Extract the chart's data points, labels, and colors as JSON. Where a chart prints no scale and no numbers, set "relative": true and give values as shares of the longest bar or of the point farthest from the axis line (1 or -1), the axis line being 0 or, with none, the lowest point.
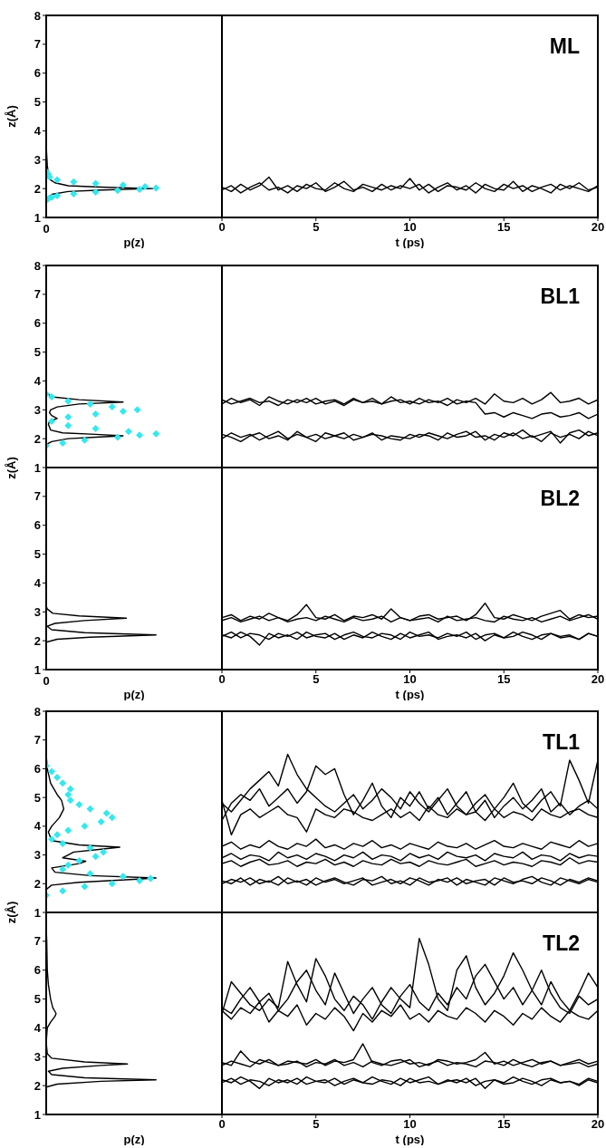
{
  "chart_data": [
    {
      "type": "line",
      "orientation": "horizontal",
      "relative": true,
      "ylabel": "z(Å)",
      "xlabel": "p(z)",
      "ylim": [
        1,
        8
      ],
      "yticks": [
        1,
        2,
        3,
        4,
        5,
        6,
        7,
        8
      ],
      "annotations": [
        {
          "text": "0",
          "x": 0,
          "y": 1
        }
      ],
      "series": [
        {
          "type": "line",
          "color": "#000000",
          "x": [
            1.0,
            1.5,
            1.7,
            1.8,
            1.9,
            1.95,
            2.0,
            2.05,
            2.1,
            2.2,
            2.3,
            2.5,
            2.8,
            3.5,
            8.0
          ],
          "values": [
            0,
            0,
            0.02,
            0.05,
            0.2,
            0.5,
            0.97,
            0.5,
            0.2,
            0.08,
            0.04,
            0.02,
            0.01,
            0,
            0
          ]
        },
        {
          "type": "scatter",
          "marker": "diamond",
          "color": "#33e8ee",
          "x": [
            1.6,
            1.65,
            1.7,
            1.75,
            1.82,
            1.88,
            1.93,
            1.97,
            2.02,
            2.07,
            2.12,
            2.18,
            2.23,
            2.3,
            2.4,
            2.5,
            2.6
          ],
          "values": [
            0,
            0.02,
            0.05,
            0.1,
            0.25,
            0.45,
            0.65,
            0.85,
            1,
            0.9,
            0.7,
            0.45,
            0.25,
            0.1,
            0.03,
            0.02,
            0
          ]
        }
      ]
    },
    {
      "type": "line",
      "xlabel": "t (ps)",
      "annotations": [
        "ML"
      ],
      "tick_labels": "x",
      "xlim": [
        0,
        20
      ],
      "xticks": [
        0,
        5,
        10,
        15,
        20
      ],
      "ylim": [
        1,
        8
      ],
      "yticks": [
        1,
        2,
        3,
        4,
        5,
        6,
        7,
        8
      ],
      "x": [
        0,
        0.5,
        1,
        1.5,
        2,
        2.5,
        3,
        3.5,
        4,
        4.5,
        5,
        5.5,
        6,
        6.5,
        7,
        7.5,
        8,
        8.5,
        9,
        9.5,
        10,
        10.5,
        11,
        11.5,
        12,
        12.5,
        13,
        13.5,
        14,
        14.5,
        15,
        15.5,
        16,
        16.5,
        17,
        17.5,
        18,
        18.5,
        19,
        19.5,
        20
      ],
      "series": [
        {
          "color": "#000000",
          "values": [
            2.05,
            1.9,
            2.15,
            1.95,
            2.1,
            2.4,
            1.95,
            2.1,
            1.9,
            2.15,
            2.0,
            1.95,
            2.2,
            2.0,
            1.9,
            2.15,
            2.05,
            1.95,
            2.1,
            2.0,
            2.35,
            1.95,
            2.15,
            1.9,
            2.1,
            2.05,
            1.95,
            2.2,
            2.0,
            1.9,
            2.15,
            2.0,
            2.1,
            1.9,
            2.05,
            2.15,
            1.95,
            2.1,
            2.0,
            1.9,
            2.1
          ]
        },
        {
          "color": "#000000",
          "values": [
            1.95,
            2.1,
            1.85,
            2.05,
            2.2,
            1.95,
            2.05,
            1.85,
            2.1,
            2.0,
            2.2,
            1.9,
            2.05,
            2.25,
            1.95,
            2.05,
            1.9,
            2.15,
            1.95,
            2.1,
            2.0,
            2.15,
            1.85,
            2.05,
            2.2,
            1.95,
            2.1,
            1.85,
            2.15,
            2.0,
            1.95,
            2.25,
            1.9,
            2.1,
            2.0,
            1.85,
            2.15,
            2.0,
            2.2,
            1.95,
            2.05
          ]
        }
      ]
    },
    {
      "type": "line",
      "orientation": "horizontal",
      "relative": true,
      "ylabel": "z(Å)",
      "tick_labels": "y",
      "ylim": [
        1,
        8
      ],
      "yticks": [
        1,
        2,
        3,
        4,
        5,
        6,
        7,
        8
      ],
      "series": [
        {
          "type": "line",
          "color": "#000000",
          "x": [
            1.0,
            1.8,
            1.9,
            2.0,
            2.05,
            2.1,
            2.15,
            2.2,
            2.3,
            2.5,
            2.6,
            2.7,
            2.8,
            2.9,
            3.0,
            3.1,
            3.2,
            3.27,
            3.35,
            3.45,
            3.6,
            8.0
          ],
          "values": [
            0,
            0,
            0.05,
            0.2,
            0.45,
            0.7,
            0.45,
            0.15,
            0.04,
            0.02,
            0.03,
            0.1,
            0.05,
            0.03,
            0.04,
            0.1,
            0.3,
            0.7,
            0.3,
            0.05,
            0,
            0
          ]
        },
        {
          "type": "scatter",
          "marker": "diamond",
          "color": "#33e8ee",
          "x": [
            1.75,
            1.85,
            1.95,
            2.05,
            2.12,
            2.17,
            2.25,
            2.35,
            2.45,
            2.6,
            2.75,
            2.85,
            2.95,
            3.0,
            3.1,
            3.2,
            3.3,
            3.45,
            3.55
          ],
          "values": [
            0,
            0.15,
            0.35,
            0.65,
            0.85,
            1,
            0.75,
            0.45,
            0.2,
            0.05,
            0.2,
            0.45,
            0.7,
            0.83,
            0.6,
            0.4,
            0.2,
            0.05,
            0
          ]
        }
      ]
    },
    {
      "type": "line",
      "annotations": [
        "BL1"
      ],
      "tick_labels": false,
      "xlim": [
        0,
        20
      ],
      "xticks": [
        0,
        5,
        10,
        15,
        20
      ],
      "ylim": [
        1,
        8
      ],
      "yticks": [
        1,
        2,
        3,
        4,
        5,
        6,
        7,
        8
      ],
      "x": [
        0,
        0.5,
        1,
        1.5,
        2,
        2.5,
        3,
        3.5,
        4,
        4.5,
        5,
        5.5,
        6,
        6.5,
        7,
        7.5,
        8,
        8.5,
        9,
        9.5,
        10,
        10.5,
        11,
        11.5,
        12,
        12.5,
        13,
        13.5,
        14,
        14.5,
        15,
        15.5,
        16,
        16.5,
        17,
        17.5,
        18,
        18.5,
        19,
        19.5,
        20
      ],
      "series": [
        {
          "color": "#000000",
          "values": [
            3.2,
            3.4,
            3.25,
            3.35,
            3.15,
            3.45,
            3.3,
            3.2,
            3.35,
            3.25,
            3.4,
            3.2,
            3.3,
            3.15,
            3.35,
            3.25,
            3.4,
            3.2,
            3.3,
            3.35,
            3.2,
            3.4,
            3.25,
            3.3,
            3.15,
            3.35,
            3.25,
            3.4,
            3.2,
            3.55,
            3.3,
            3.25,
            3.4,
            3.2,
            3.35,
            3.6,
            3.25,
            3.3,
            3.4,
            3.2,
            3.35
          ]
        },
        {
          "color": "#000000",
          "values": [
            3.35,
            3.2,
            3.3,
            3.4,
            3.25,
            3.3,
            3.15,
            3.35,
            3.25,
            3.4,
            3.2,
            3.3,
            3.35,
            3.2,
            3.4,
            3.25,
            3.3,
            3.2,
            3.45,
            3.25,
            3.3,
            3.2,
            3.35,
            3.25,
            3.4,
            3.2,
            3.3,
            3.25,
            2.85,
            2.9,
            2.75,
            2.9,
            2.8,
            2.7,
            2.85,
            2.9,
            2.75,
            2.8,
            2.9,
            2.7,
            2.85
          ]
        },
        {
          "color": "#000000",
          "values": [
            2.0,
            2.2,
            2.05,
            2.15,
            1.95,
            2.1,
            2.25,
            2.0,
            2.15,
            2.05,
            1.9,
            2.2,
            2.1,
            2.0,
            2.15,
            2.05,
            2.2,
            1.95,
            2.1,
            2.05,
            2.0,
            2.15,
            2.1,
            1.95,
            2.2,
            2.05,
            2.1,
            2.25,
            1.95,
            2.15,
            2.05,
            2.2,
            2.0,
            2.1,
            1.9,
            2.2,
            2.05,
            2.15,
            2.0,
            2.25,
            2.1
          ]
        },
        {
          "color": "#000000",
          "values": [
            2.15,
            2.05,
            1.9,
            2.1,
            2.2,
            2.0,
            2.1,
            1.95,
            2.25,
            2.05,
            2.15,
            2.0,
            2.1,
            2.2,
            1.95,
            2.05,
            2.15,
            2.1,
            2.0,
            1.95,
            2.15,
            2.05,
            2.2,
            2.1,
            2.0,
            2.15,
            2.25,
            2.05,
            2.1,
            1.95,
            2.2,
            2.1,
            2.3,
            2.05,
            2.15,
            2.25,
            1.85,
            2.2,
            2.3,
            2.1,
            2.2
          ]
        }
      ]
    },
    {
      "type": "line",
      "orientation": "horizontal",
      "relative": true,
      "xlabel": "p(z)",
      "ylim": [
        1,
        8
      ],
      "yticks": [
        1,
        2,
        3,
        4,
        5,
        6,
        7
      ],
      "annotations": [
        {
          "text": "0",
          "x": 0,
          "y": 1
        }
      ],
      "series": [
        {
          "type": "line",
          "color": "#000000",
          "x": [
            1.0,
            1.95,
            2.05,
            2.12,
            2.2,
            2.28,
            2.38,
            2.5,
            2.6,
            2.7,
            2.78,
            2.86,
            2.95,
            3.1,
            3.2,
            8.0
          ],
          "values": [
            0,
            0,
            0.1,
            0.4,
            1,
            0.35,
            0.05,
            0.01,
            0.08,
            0.35,
            0.73,
            0.3,
            0.06,
            0.01,
            0,
            0
          ]
        }
      ]
    },
    {
      "type": "line",
      "xlabel": "t (ps)",
      "annotations": [
        "BL2"
      ],
      "tick_labels": "x",
      "xlim": [
        0,
        20
      ],
      "xticks": [
        0,
        5,
        10,
        15,
        20
      ],
      "ylim": [
        1,
        8
      ],
      "yticks": [
        1,
        2,
        3,
        4,
        5,
        6,
        7
      ],
      "x": [
        0,
        0.5,
        1,
        1.5,
        2,
        2.5,
        3,
        3.5,
        4,
        4.5,
        5,
        5.5,
        6,
        6.5,
        7,
        7.5,
        8,
        8.5,
        9,
        9.5,
        10,
        10.5,
        11,
        11.5,
        12,
        12.5,
        13,
        13.5,
        14,
        14.5,
        15,
        15.5,
        16,
        16.5,
        17,
        17.5,
        18,
        18.5,
        19,
        19.5,
        20
      ],
      "series": [
        {
          "color": "#000000",
          "values": [
            2.8,
            2.9,
            2.7,
            2.85,
            2.75,
            2.95,
            2.8,
            2.7,
            2.9,
            3.25,
            2.8,
            2.75,
            2.9,
            2.7,
            2.85,
            2.8,
            2.9,
            2.75,
            3.1,
            2.8,
            2.7,
            2.85,
            2.9,
            2.75,
            2.8,
            2.85,
            2.7,
            2.9,
            3.3,
            2.8,
            2.75,
            2.9,
            2.8,
            2.7,
            2.85,
            2.95,
            3.05,
            2.75,
            2.9,
            2.8,
            2.85
          ]
        },
        {
          "color": "#000000",
          "values": [
            2.7,
            2.8,
            2.65,
            2.75,
            2.85,
            2.7,
            2.8,
            2.65,
            2.75,
            2.8,
            2.7,
            2.85,
            2.75,
            2.65,
            2.8,
            2.7,
            2.75,
            2.85,
            2.65,
            2.8,
            2.7,
            2.75,
            2.8,
            2.65,
            2.85,
            2.7,
            2.75,
            2.8,
            2.7,
            2.65,
            2.85,
            2.75,
            2.7,
            2.8,
            2.65,
            2.75,
            2.85,
            2.7,
            2.8,
            2.9,
            2.75
          ]
        },
        {
          "color": "#000000",
          "values": [
            2.2,
            2.1,
            2.3,
            2.15,
            1.85,
            2.25,
            2.1,
            2.2,
            2.05,
            2.3,
            2.15,
            2.1,
            2.25,
            2.05,
            2.2,
            2.1,
            2.3,
            2.15,
            2.05,
            2.25,
            2.1,
            2.2,
            2.3,
            2.05,
            2.15,
            2.2,
            2.1,
            2.25,
            2.0,
            2.2,
            2.1,
            2.3,
            2.15,
            2.05,
            2.2,
            2.25,
            2.1,
            2.15,
            2.05,
            2.25,
            2.15
          ]
        },
        {
          "color": "#000000",
          "values": [
            2.15,
            2.3,
            2.1,
            2.25,
            2.2,
            2.05,
            2.25,
            2.15,
            2.3,
            2.1,
            2.2,
            2.25,
            2.05,
            2.2,
            2.3,
            2.15,
            2.1,
            2.25,
            2.2,
            2.05,
            2.3,
            2.15,
            2.2,
            2.1,
            2.25,
            2.15,
            2.3,
            2.05,
            2.2,
            2.25,
            2.1,
            2.15,
            2.3,
            2.2,
            2.05,
            2.25,
            2.15,
            2.2,
            2.05,
            2.25,
            2.15
          ]
        }
      ]
    },
    {
      "type": "line",
      "orientation": "horizontal",
      "relative": true,
      "ylabel": "z(Å)",
      "tick_labels": "y",
      "ylim": [
        1,
        8
      ],
      "yticks": [
        1,
        2,
        3,
        4,
        5,
        6,
        7,
        8
      ],
      "series": [
        {
          "type": "line",
          "color": "#000000",
          "x": [
            1.0,
            1.8,
            1.95,
            2.05,
            2.15,
            2.2,
            2.28,
            2.4,
            2.55,
            2.7,
            2.78,
            2.9,
            3.0,
            3.1,
            3.2,
            3.27,
            3.35,
            3.5,
            3.8,
            4.0,
            4.3,
            4.6,
            4.9,
            5.1,
            5.5,
            6.0,
            6.5,
            8.0
          ],
          "values": [
            0,
            0,
            0.05,
            0.3,
            0.8,
            1,
            0.4,
            0.08,
            0.05,
            0.3,
            0.36,
            0.15,
            0.2,
            0.25,
            0.5,
            0.67,
            0.3,
            0.05,
            0.02,
            0.05,
            0.12,
            0.16,
            0.14,
            0.1,
            0.04,
            0.01,
            0,
            0
          ]
        },
        {
          "type": "scatter",
          "marker": "diamond",
          "color": "#33e8ee",
          "x": [
            1.6,
            1.75,
            1.9,
            2.0,
            2.1,
            2.18,
            2.25,
            2.35,
            2.5,
            2.65,
            2.8,
            2.95,
            3.1,
            3.25,
            3.4,
            3.55,
            3.7,
            3.85,
            4.0,
            4.15,
            4.3,
            4.45,
            4.6,
            4.75,
            4.9,
            5.1,
            5.3,
            5.5,
            5.7,
            5.9,
            6.1
          ],
          "values": [
            0,
            0.15,
            0.35,
            0.6,
            0.85,
            0.95,
            0.7,
            0.4,
            0.15,
            0.2,
            0.3,
            0.45,
            0.52,
            0.4,
            0.15,
            0.05,
            0.1,
            0.2,
            0.35,
            0.5,
            0.6,
            0.55,
            0.4,
            0.3,
            0.22,
            0.2,
            0.22,
            0.15,
            0.1,
            0.05,
            0
          ]
        }
      ]
    },
    {
      "type": "line",
      "annotations": [
        "TL1"
      ],
      "tick_labels": false,
      "xlim": [
        0,
        20
      ],
      "xticks": [
        0,
        5,
        10,
        15,
        20
      ],
      "ylim": [
        1,
        8
      ],
      "yticks": [
        1,
        2,
        3,
        4,
        5,
        6,
        7,
        8
      ],
      "x": [
        0,
        0.5,
        1,
        1.5,
        2,
        2.5,
        3,
        3.5,
        4,
        4.5,
        5,
        5.5,
        6,
        6.5,
        7,
        7.5,
        8,
        8.5,
        9,
        9.5,
        10,
        10.5,
        11,
        11.5,
        12,
        12.5,
        13,
        13.5,
        14,
        14.5,
        15,
        15.5,
        16,
        16.5,
        17,
        17.5,
        18,
        18.5,
        19,
        19.5,
        20
      ],
      "series": [
        {
          "color": "#000000",
          "values": [
            4.8,
            4.5,
            4.9,
            5.3,
            5.6,
            5.9,
            5.4,
            6.5,
            5.8,
            5.3,
            5.0,
            4.7,
            4.5,
            4.8,
            5.1,
            4.6,
            4.9,
            5.3,
            5.0,
            4.6,
            5.2,
            4.8,
            4.5,
            4.9,
            5.3,
            4.7,
            4.4,
            4.8,
            5.1,
            4.6,
            5.0,
            5.5,
            4.8,
            4.5,
            4.9,
            5.2,
            4.7,
            6.3,
            5.6,
            4.8,
            6.3
          ]
        },
        {
          "color": "#000000",
          "values": [
            4.2,
            4.8,
            5.1,
            4.9,
            5.3,
            4.7,
            5.0,
            5.3,
            4.8,
            5.2,
            6.1,
            5.8,
            6.0,
            5.1,
            4.4,
            4.9,
            5.5,
            4.7,
            4.3,
            5.0,
            4.7,
            5.2,
            4.6,
            5.0,
            4.4,
            4.8,
            5.2,
            4.5,
            4.9,
            4.3,
            4.7,
            5.0,
            4.6,
            4.9,
            5.3,
            4.5,
            4.8,
            4.4,
            4.7,
            4.9,
            4.6
          ]
        },
        {
          "color": "#000000",
          "values": [
            4.9,
            3.7,
            4.4,
            4.6,
            4.3,
            4.5,
            4.7,
            4.4,
            4.3,
            3.8,
            4.6,
            4.4,
            4.3,
            4.6,
            4.5,
            4.3,
            4.2,
            4.4,
            4.6,
            4.3,
            4.5,
            4.2,
            4.7,
            4.4,
            4.3,
            4.6,
            4.4,
            4.5,
            4.2,
            4.6,
            4.3,
            4.5,
            4.4,
            4.2,
            4.6,
            4.4,
            4.3,
            4.5,
            4.6,
            4.4,
            4.3
          ]
        },
        {
          "color": "#000000",
          "values": [
            3.3,
            3.45,
            3.2,
            3.35,
            3.25,
            3.5,
            3.3,
            3.2,
            3.4,
            3.3,
            3.55,
            3.25,
            3.35,
            3.2,
            3.4,
            3.3,
            3.5,
            3.25,
            3.35,
            3.2,
            3.4,
            3.3,
            3.2,
            3.45,
            3.3,
            3.25,
            3.4,
            3.2,
            3.35,
            3.5,
            3.3,
            3.25,
            3.4,
            3.3,
            3.2,
            3.45,
            3.35,
            3.25,
            3.5,
            3.3,
            3.4
          ]
        },
        {
          "color": "#000000",
          "values": [
            2.9,
            3.05,
            2.85,
            3.0,
            2.95,
            2.8,
            3.1,
            2.9,
            3.0,
            2.85,
            3.05,
            2.95,
            2.8,
            3.0,
            2.9,
            3.1,
            2.85,
            3.0,
            2.95,
            2.8,
            3.05,
            2.9,
            3.0,
            2.85,
            3.1,
            2.95,
            2.9,
            3.0,
            2.8,
            3.05,
            2.95,
            2.9,
            3.1,
            2.85,
            3.0,
            2.95,
            2.8,
            3.05,
            2.9,
            3.0,
            2.95
          ]
        },
        {
          "color": "#000000",
          "values": [
            2.7,
            2.8,
            2.6,
            2.75,
            2.85,
            2.65,
            2.7,
            2.8,
            2.6,
            2.75,
            2.7,
            2.85,
            2.65,
            2.75,
            2.6,
            2.8,
            2.7,
            2.65,
            2.85,
            2.7,
            2.75,
            2.6,
            2.8,
            2.7,
            2.65,
            2.75,
            2.85,
            2.6,
            2.7,
            2.8,
            2.65,
            2.75,
            2.7,
            2.6,
            2.8,
            2.75,
            2.65,
            2.9,
            2.7,
            2.8,
            2.75
          ]
        },
        {
          "color": "#000000",
          "values": [
            2.1,
            2.0,
            2.2,
            1.95,
            2.15,
            2.05,
            2.25,
            2.0,
            2.1,
            1.95,
            2.2,
            2.05,
            2.15,
            2.0,
            2.1,
            2.2,
            1.95,
            2.05,
            2.15,
            2.0,
            2.2,
            2.1,
            1.95,
            2.15,
            2.05,
            2.2,
            2.0,
            2.1,
            2.15,
            1.95,
            2.2,
            2.05,
            2.1,
            2.0,
            2.2,
            2.1,
            1.95,
            2.15,
            2.05,
            2.2,
            2.1
          ]
        },
        {
          "color": "#000000",
          "values": [
            2.0,
            2.15,
            2.05,
            2.2,
            2.0,
            2.1,
            1.95,
            2.2,
            2.05,
            2.15,
            1.95,
            2.1,
            2.2,
            2.05,
            1.95,
            2.15,
            2.1,
            2.25,
            2.0,
            2.1,
            1.95,
            2.2,
            2.05,
            2.1,
            2.2,
            1.95,
            2.15,
            2.05,
            1.95,
            2.2,
            2.1,
            2.0,
            2.15,
            2.25,
            2.05,
            1.95,
            2.2,
            2.1,
            2.0,
            2.15,
            2.05
          ]
        }
      ]
    },
    {
      "type": "line",
      "orientation": "horizontal",
      "relative": true,
      "xlabel": "p(z)",
      "tick_labels": "y",
      "ylim": [
        1,
        8
      ],
      "yticks": [
        1,
        2,
        3,
        4,
        5,
        6,
        7
      ],
      "series": [
        {
          "type": "line",
          "color": "#000000",
          "x": [
            1.0,
            1.95,
            2.05,
            2.15,
            2.2,
            2.27,
            2.38,
            2.5,
            2.6,
            2.7,
            2.75,
            2.82,
            2.95,
            3.1,
            3.5,
            4.0,
            4.2,
            4.4,
            4.5,
            4.7,
            5.0,
            5.5,
            6.0,
            7.0,
            7.5,
            8.0
          ],
          "values": [
            0,
            0,
            0.1,
            0.5,
            1,
            0.35,
            0.05,
            0.02,
            0.15,
            0.5,
            0.74,
            0.35,
            0.05,
            0.01,
            0,
            0.01,
            0.04,
            0.08,
            0.09,
            0.06,
            0.04,
            0.02,
            0.01,
            0.005,
            0,
            0
          ]
        }
      ]
    },
    {
      "type": "line",
      "xlabel": "t (ps)",
      "annotations": [
        "TL2"
      ],
      "tick_labels": "x",
      "xlim": [
        0,
        20
      ],
      "xticks": [
        0,
        5,
        10,
        15,
        20
      ],
      "ylim": [
        1,
        8
      ],
      "yticks": [
        1,
        2,
        3,
        4,
        5,
        6,
        7
      ],
      "x": [
        0,
        0.5,
        1,
        1.5,
        2,
        2.5,
        3,
        3.5,
        4,
        4.5,
        5,
        5.5,
        6,
        6.5,
        7,
        7.5,
        8,
        8.5,
        9,
        9.5,
        10,
        10.5,
        11,
        11.5,
        12,
        12.5,
        13,
        13.5,
        14,
        14.5,
        15,
        15.5,
        16,
        16.5,
        17,
        17.5,
        18,
        18.5,
        19,
        19.5,
        20
      ],
      "series": [
        {
          "color": "#000000",
          "values": [
            4.5,
            5.6,
            5.2,
            4.8,
            4.6,
            5.0,
            4.7,
            6.3,
            5.5,
            4.9,
            6.4,
            5.8,
            5.0,
            4.6,
            5.1,
            4.8,
            4.3,
            4.9,
            5.4,
            5.0,
            4.7,
            7.1,
            6.2,
            5.0,
            4.6,
            6.0,
            6.5,
            5.4,
            4.8,
            5.2,
            5.8,
            6.6,
            6.0,
            5.3,
            4.8,
            5.6,
            5.0,
            4.6,
            5.2,
            5.9,
            5.4
          ]
        },
        {
          "color": "#000000",
          "values": [
            4.7,
            4.5,
            5.0,
            5.4,
            4.9,
            5.2,
            4.6,
            5.0,
            5.6,
            6.0,
            5.3,
            4.8,
            5.9,
            5.2,
            4.5,
            5.0,
            5.4,
            4.8,
            4.5,
            5.1,
            5.5,
            4.9,
            4.6,
            5.2,
            4.8,
            5.4,
            5.0,
            5.8,
            6.2,
            5.6,
            5.0,
            5.4,
            4.8,
            5.3,
            6.0,
            5.2,
            4.7,
            4.5,
            5.1,
            4.8,
            5.0
          ]
        },
        {
          "color": "#000000",
          "values": [
            4.6,
            4.3,
            4.7,
            4.5,
            4.9,
            4.2,
            4.6,
            4.4,
            4.8,
            4.1,
            4.5,
            4.3,
            4.7,
            4.4,
            3.9,
            4.5,
            4.2,
            4.6,
            4.4,
            4.8,
            4.3,
            4.5,
            4.2,
            4.6,
            4.4,
            4.3,
            4.7,
            4.5,
            4.2,
            4.6,
            4.4,
            4.1,
            4.5,
            4.3,
            4.7,
            4.4,
            4.2,
            4.6,
            4.4,
            4.3,
            4.6
          ]
        },
        {
          "color": "#000000",
          "values": [
            2.8,
            2.7,
            3.2,
            2.85,
            2.75,
            2.9,
            2.7,
            2.85,
            2.8,
            2.75,
            2.9,
            2.7,
            2.85,
            2.8,
            2.9,
            3.45,
            2.8,
            2.7,
            2.85,
            2.9,
            2.75,
            2.8,
            2.7,
            2.9,
            2.85,
            2.75,
            2.8,
            2.9,
            3.15,
            2.75,
            2.85,
            2.7,
            2.8,
            2.9,
            2.75,
            2.85,
            2.7,
            2.8,
            2.9,
            2.75,
            2.85
          ]
        },
        {
          "color": "#000000",
          "values": [
            2.7,
            2.85,
            2.75,
            2.65,
            2.9,
            2.8,
            2.7,
            2.75,
            2.85,
            2.65,
            2.8,
            2.75,
            2.9,
            2.7,
            2.8,
            2.65,
            2.85,
            2.75,
            2.7,
            2.8,
            2.9,
            2.65,
            2.75,
            2.85,
            2.7,
            2.8,
            2.75,
            2.65,
            2.85,
            2.8,
            2.7,
            2.9,
            2.75,
            2.65,
            2.8,
            2.85,
            2.7,
            2.75,
            2.8,
            2.65,
            2.75
          ]
        },
        {
          "color": "#000000",
          "values": [
            2.2,
            2.1,
            2.3,
            2.15,
            1.9,
            2.25,
            2.1,
            2.2,
            2.05,
            2.3,
            2.15,
            2.1,
            2.25,
            2.05,
            2.2,
            2.1,
            2.3,
            2.15,
            2.05,
            2.25,
            2.1,
            2.2,
            2.3,
            2.05,
            2.15,
            2.2,
            2.1,
            2.25,
            1.9,
            2.2,
            2.1,
            2.3,
            2.15,
            2.05,
            2.2,
            2.25,
            2.1,
            2.15,
            2.05,
            2.25,
            2.15
          ]
        },
        {
          "color": "#000000",
          "values": [
            2.1,
            2.25,
            2.05,
            2.2,
            2.15,
            2.0,
            2.2,
            2.1,
            2.25,
            2.05,
            2.15,
            2.2,
            2.0,
            2.15,
            2.25,
            2.1,
            2.05,
            2.2,
            2.15,
            2.0,
            2.25,
            2.1,
            2.15,
            2.05,
            2.2,
            2.1,
            2.25,
            2.0,
            2.15,
            2.2,
            2.05,
            2.1,
            2.25,
            2.15,
            2.0,
            2.2,
            2.1,
            2.15,
            2.0,
            2.2,
            2.1
          ]
        }
      ]
    }
  ]
}
